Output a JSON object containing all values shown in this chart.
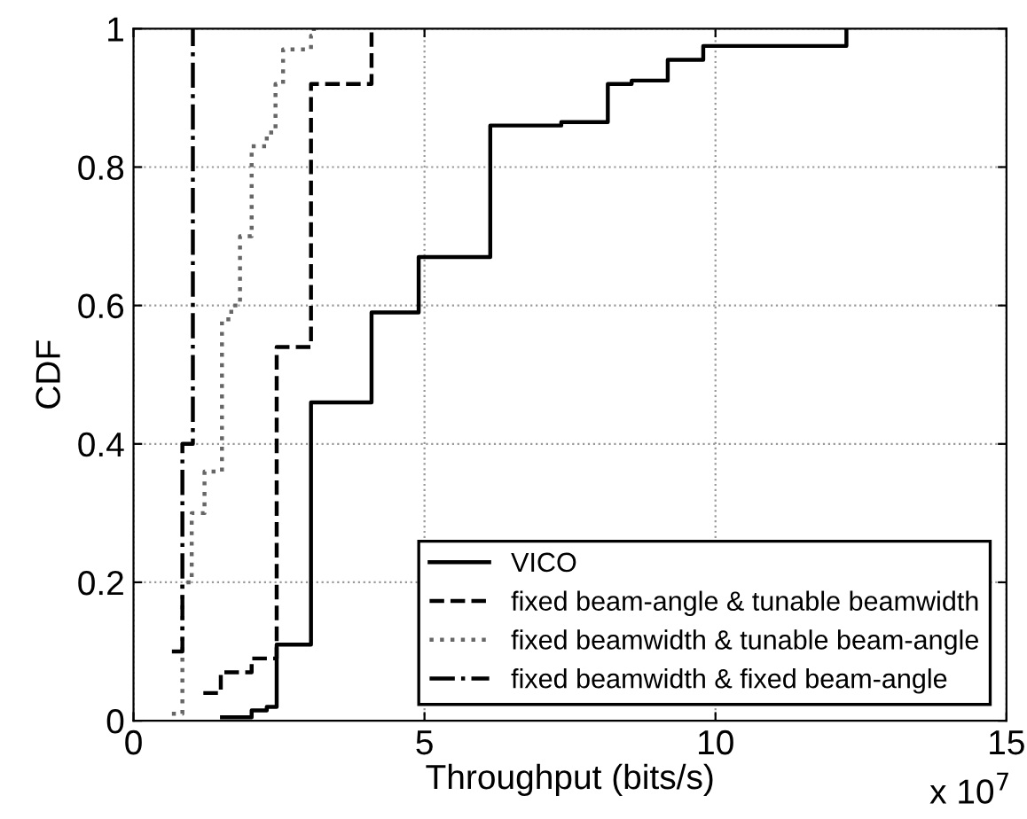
{
  "chart_data": {
    "type": "step",
    "xlabel": "Throughput (bits/s)",
    "ylabel": "CDF",
    "annotations": [
      "x 10$^{7}$"
    ],
    "xlim": [
      0,
      15
    ],
    "xticks": [
      0,
      5,
      10,
      15
    ],
    "ylim": [
      0,
      1
    ],
    "yticks": [
      0,
      0.2,
      0.4,
      0.6,
      0.8,
      1
    ],
    "grid": true,
    "legend": "bottom right",
    "series": [
      {
        "name": "VICO",
        "color": "#000000",
        "line_style": "solid",
        "x": [
          1.52,
          2.03,
          2.29,
          2.46,
          3.05,
          4.09,
          4.9,
          6.13,
          7.35,
          8.15,
          8.56,
          9.18,
          9.79,
          12.25
        ],
        "values": [
          0.005,
          0.015,
          0.02,
          0.11,
          0.46,
          0.59,
          0.67,
          0.86,
          0.865,
          0.92,
          0.925,
          0.955,
          0.975,
          1.0
        ]
      },
      {
        "name": "fixed beam-angle & tunable beamwidth",
        "color": "#000000",
        "line_style": "dashed",
        "x": [
          1.2,
          1.5,
          2.03,
          2.46,
          3.05,
          4.09
        ],
        "values": [
          0.04,
          0.07,
          0.09,
          0.54,
          0.92,
          1.0
        ]
      },
      {
        "name": "fixed beamwidth & tunable beam-angle",
        "color": "#666666",
        "line_style": "dotted",
        "x": [
          0.66,
          0.84,
          1.0,
          1.22,
          1.52,
          1.68,
          1.83,
          2.03,
          2.29,
          2.44,
          2.57,
          3.05,
          3.1
        ],
        "values": [
          0.01,
          0.2,
          0.3,
          0.36,
          0.58,
          0.6,
          0.7,
          0.83,
          0.85,
          0.92,
          0.97,
          0.99,
          1.0
        ]
      },
      {
        "name": "fixed beamwidth & fixed beam-angle",
        "color": "#000000",
        "line_style": "dashdot",
        "x": [
          0.66,
          0.84,
          1.02
        ],
        "values": [
          0.1,
          0.4,
          1.0
        ]
      }
    ]
  }
}
